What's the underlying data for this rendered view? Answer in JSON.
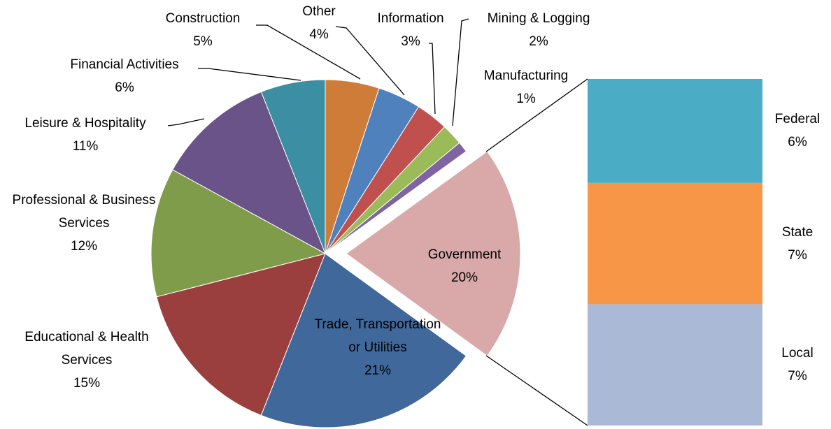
{
  "chart_data": {
    "type": "pie",
    "categories": [
      "Government",
      "Trade, Transportation or Utilities",
      "Educational & Health Services",
      "Professional & Business Services",
      "Leisure & Hospitality",
      "Financial Activities",
      "Construction",
      "Other",
      "Information",
      "Mining & Logging",
      "Manufacturing"
    ],
    "values": [
      20,
      21,
      15,
      12,
      11,
      6,
      5,
      4,
      3,
      2,
      1
    ],
    "value_labels": [
      "20%",
      "21%",
      "15%",
      "12%",
      "11%",
      "6%",
      "5%",
      "4%",
      "3%",
      "2%",
      "1%"
    ],
    "colors": [
      "#d9a9a9",
      "#41689b",
      "#9b3f3e",
      "#7f9c4a",
      "#6a5389",
      "#3c8ea2",
      "#d07c39",
      "#4f81bd",
      "#c0504d",
      "#9bbb59",
      "#8064a2"
    ],
    "bar": {
      "categories": [
        "Federal",
        "State",
        "Local"
      ],
      "values": [
        6,
        7,
        7
      ],
      "value_labels": [
        "6%",
        "7%",
        "7%"
      ],
      "colors": [
        "#4bacc6",
        "#f79646",
        "#a9b9d6"
      ]
    }
  }
}
